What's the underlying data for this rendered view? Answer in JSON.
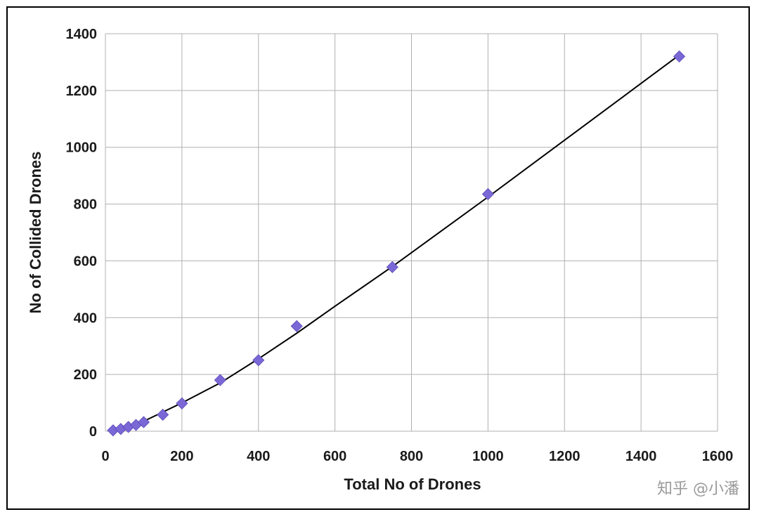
{
  "chart_data": {
    "type": "scatter",
    "xlabel": "Total No of Drones",
    "ylabel": "No of Collided Drones",
    "xlim": [
      0,
      1600
    ],
    "ylim": [
      0,
      1400
    ],
    "x_ticks": [
      0,
      200,
      400,
      600,
      800,
      1000,
      1200,
      1400,
      1600
    ],
    "y_ticks": [
      0,
      200,
      400,
      600,
      800,
      1000,
      1200,
      1400
    ],
    "grid": true,
    "legend": "none",
    "marker_color": "#7b68d6",
    "trendline_color": "#000000",
    "series": [
      {
        "marker": "diamond",
        "points": [
          {
            "x": 20,
            "y": 3
          },
          {
            "x": 40,
            "y": 8
          },
          {
            "x": 60,
            "y": 15
          },
          {
            "x": 80,
            "y": 22
          },
          {
            "x": 100,
            "y": 32
          },
          {
            "x": 150,
            "y": 58
          },
          {
            "x": 200,
            "y": 98
          },
          {
            "x": 300,
            "y": 180
          },
          {
            "x": 400,
            "y": 250
          },
          {
            "x": 500,
            "y": 370
          },
          {
            "x": 750,
            "y": 578
          },
          {
            "x": 1000,
            "y": 835
          },
          {
            "x": 1500,
            "y": 1320
          }
        ],
        "trendline": [
          {
            "x": 50,
            "y": 5
          },
          {
            "x": 100,
            "y": 35
          },
          {
            "x": 200,
            "y": 100
          },
          {
            "x": 300,
            "y": 170
          },
          {
            "x": 400,
            "y": 255
          },
          {
            "x": 500,
            "y": 345
          },
          {
            "x": 600,
            "y": 440
          },
          {
            "x": 750,
            "y": 580
          },
          {
            "x": 1000,
            "y": 825
          },
          {
            "x": 1250,
            "y": 1075
          },
          {
            "x": 1500,
            "y": 1325
          }
        ]
      }
    ]
  },
  "watermark": "知乎 @小潘"
}
